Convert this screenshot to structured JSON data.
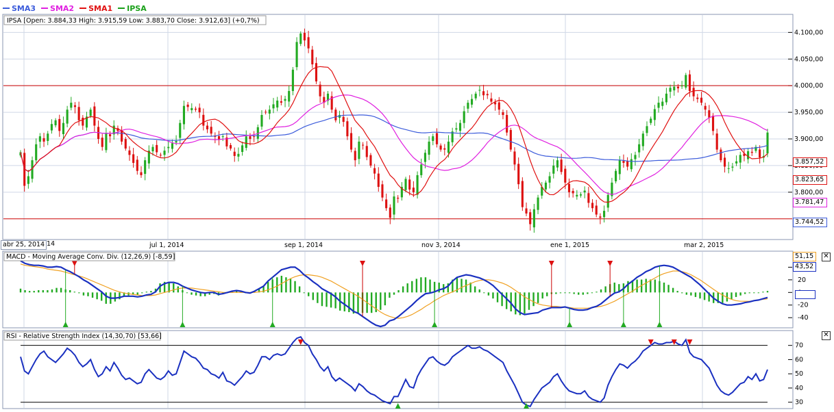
{
  "colors": {
    "sma3": "#3b5bdb",
    "sma2": "#e020e0",
    "sma1": "#e01010",
    "ipsa": "#1aa01a",
    "bull": "#22aa22",
    "bear": "#dd1111",
    "macd": "#1a30c0",
    "signal": "#f0a020",
    "rsi": "#1a30c0",
    "grid": "#cfd7e6",
    "hline": "#cc0000"
  },
  "legend": [
    {
      "label": "SMA3",
      "color": "#3b5bdb",
      "icon": "line-swatch"
    },
    {
      "label": "SMA2",
      "color": "#e020e0",
      "icon": "line-swatch"
    },
    {
      "label": "SMA1",
      "color": "#e01010",
      "icon": "line-swatch"
    },
    {
      "label": "IPSA",
      "color": "#1aa01a",
      "icon": "line-swatch"
    }
  ],
  "main": {
    "info": "IPSA [Open: 3.884,33  High: 3.915,59  Low: 3.883,70  Close: 3.912,63] (+0,7%)",
    "price_labels": [
      {
        "text": "3.857,52",
        "color": "#dd1111",
        "value": 3857.52
      },
      {
        "text": "3.823,65",
        "color": "#dd1111",
        "value": 3823.65
      },
      {
        "text": "3.781,47",
        "color": "#e020e0",
        "value": 3781.47
      },
      {
        "text": "3.744,52",
        "color": "#3b5bdb",
        "value": 3744.52
      }
    ]
  },
  "xaxis": {
    "first_date": "abr 25, 2014",
    "labels": [
      "jul 1, 2014",
      "sep 1, 2014",
      "nov 3, 2014",
      "ene 1, 2015",
      "mar 2, 2015"
    ],
    "first_date_suffix": "14"
  },
  "macd": {
    "title": "MACD - Moving Average Conv. Div. (12,26,9) [-8,59]",
    "badge_signal": "51,15",
    "badge_macd": "43,52",
    "close_icon": "close-icon"
  },
  "rsi": {
    "title": "RSI - Relative Strength Index (14,30,70) [53,66]",
    "close_icon": "close-icon"
  },
  "chart_data": [
    {
      "type": "candlestick",
      "title": "IPSA",
      "yticks": [
        3800,
        3850,
        3900,
        3950,
        4000,
        4050,
        4100
      ],
      "ytick_labels": [
        "3.800,00",
        "3.850,00",
        "3.900,00",
        "3.950,00",
        "4.000,00",
        "4.050,00",
        "4.100,00"
      ],
      "ylim": [
        3715,
        4130
      ],
      "hlines": [
        4000,
        3750
      ],
      "series": [
        {
          "name": "SMA3"
        },
        {
          "name": "SMA2"
        },
        {
          "name": "SMA1"
        },
        {
          "name": "IPSA"
        }
      ],
      "close": [
        3875,
        3812,
        3830,
        3860,
        3890,
        3905,
        3895,
        3910,
        3928,
        3935,
        3915,
        3930,
        3955,
        3968,
        3960,
        3935,
        3925,
        3942,
        3955,
        3925,
        3900,
        3885,
        3910,
        3905,
        3925,
        3915,
        3895,
        3882,
        3870,
        3855,
        3840,
        3832,
        3860,
        3878,
        3885,
        3875,
        3870,
        3878,
        3885,
        3892,
        3896,
        3930,
        3962,
        3960,
        3958,
        3955,
        3950,
        3925,
        3918,
        3910,
        3904,
        3898,
        3905,
        3886,
        3882,
        3868,
        3872,
        3888,
        3905,
        3900,
        3904,
        3922,
        3945,
        3950,
        3955,
        3965,
        3972,
        3968,
        3975,
        3990,
        4030,
        4082,
        4098,
        4085,
        4070,
        4040,
        4008,
        3980,
        3968,
        3985,
        3955,
        3935,
        3945,
        3932,
        3905,
        3880,
        3860,
        3895,
        3888,
        3866,
        3850,
        3835,
        3810,
        3790,
        3770,
        3752,
        3792,
        3788,
        3810,
        3825,
        3805,
        3800,
        3832,
        3852,
        3874,
        3895,
        3905,
        3890,
        3880,
        3880,
        3895,
        3914,
        3920,
        3930,
        3952,
        3968,
        3975,
        3985,
        3992,
        3982,
        3982,
        3970,
        3965,
        3955,
        3945,
        3912,
        3880,
        3852,
        3815,
        3772,
        3760,
        3740,
        3768,
        3790,
        3810,
        3818,
        3830,
        3850,
        3860,
        3838,
        3818,
        3800,
        3798,
        3795,
        3796,
        3803,
        3780,
        3770,
        3758,
        3752,
        3765,
        3795,
        3818,
        3840,
        3860,
        3855,
        3848,
        3862,
        3870,
        3890,
        3910,
        3924,
        3938,
        3956,
        3968,
        3970,
        3985,
        3996,
        3998,
        3995,
        4000,
        4020,
        3990,
        3980,
        3975,
        3968,
        3955,
        3940,
        3915,
        3880,
        3860,
        3848,
        3845,
        3848,
        3858,
        3870,
        3868,
        3877,
        3874,
        3885,
        3865,
        3868,
        3912
      ]
    },
    {
      "type": "line",
      "title": "MACD",
      "yticks": [
        -40,
        -20,
        0,
        20,
        40
      ],
      "ylim": [
        -55,
        60
      ],
      "macd": [
        50,
        46,
        44,
        43,
        43,
        42,
        40,
        40,
        41,
        40,
        36,
        33,
        29,
        25,
        20,
        16,
        11,
        6,
        1,
        -6,
        -9,
        -9,
        -8,
        -6,
        -6,
        -6,
        -7,
        -6,
        -4,
        -3,
        1,
        10,
        14,
        16,
        16,
        14,
        10,
        7,
        4,
        2,
        0,
        -1,
        0,
        0,
        -3,
        -2,
        0,
        2,
        3,
        2,
        0,
        -1,
        2,
        6,
        10,
        18,
        24,
        30,
        36,
        38,
        40,
        40,
        35,
        28,
        23,
        17,
        12,
        6,
        2,
        -2,
        -7,
        -14,
        -19,
        -24,
        -30,
        -33,
        -38,
        -43,
        -48,
        -52,
        -54,
        -52,
        -45,
        -43,
        -38,
        -32,
        -26,
        -20,
        -13,
        -7,
        -2,
        -1,
        1,
        4,
        6,
        10,
        18,
        24,
        26,
        28,
        27,
        25,
        23,
        20,
        16,
        11,
        4,
        -3,
        -10,
        -17,
        -26,
        -32,
        -35,
        -34,
        -33,
        -32,
        -28,
        -26,
        -24,
        -24,
        -24,
        -23,
        -25,
        -27,
        -28,
        -28,
        -27,
        -24,
        -22,
        -18,
        -12,
        -6,
        -1,
        1,
        6,
        13,
        18,
        24,
        28,
        33,
        36,
        40,
        42,
        43,
        42,
        40,
        36,
        32,
        28,
        24,
        18,
        12,
        5,
        -2,
        -9,
        -14,
        -18,
        -20,
        -20,
        -19,
        -18,
        -16,
        -15,
        -13,
        -12,
        -10,
        -8
      ],
      "signal": [
        45,
        43,
        42,
        41,
        40,
        39,
        37,
        36,
        35,
        34,
        32,
        30,
        28,
        26,
        24,
        21,
        18,
        15,
        12,
        9,
        6,
        3,
        1,
        -1,
        -2,
        -3,
        -4,
        -5,
        -5,
        -5,
        -4,
        -2,
        0,
        2,
        4,
        6,
        7,
        7,
        7,
        6,
        5,
        4,
        3,
        2,
        1,
        0,
        0,
        0,
        0,
        0,
        0,
        0,
        0,
        1,
        2,
        4,
        7,
        10,
        14,
        18,
        22,
        25,
        27,
        28,
        28,
        27,
        26,
        24,
        21,
        18,
        14,
        10,
        6,
        2,
        -2,
        -6,
        -11,
        -16,
        -21,
        -26,
        -31,
        -35,
        -38,
        -40,
        -41,
        -40,
        -38,
        -35,
        -31,
        -27,
        -22,
        -18,
        -13,
        -9,
        -5,
        -2,
        1,
        4,
        8,
        11,
        14,
        17,
        19,
        20,
        20,
        19,
        17,
        15,
        12,
        8,
        3,
        -2,
        -7,
        -11,
        -15,
        -18,
        -20,
        -21,
        -22,
        -22,
        -23,
        -23,
        -24,
        -25,
        -25,
        -25,
        -25,
        -24,
        -23,
        -22,
        -20,
        -17,
        -14,
        -10,
        -6,
        -2,
        2,
        7,
        11,
        15,
        19,
        23,
        27,
        30,
        32,
        34,
        34,
        33,
        31,
        28,
        24,
        20,
        15,
        10,
        5,
        0,
        -4,
        -8,
        -11,
        -13,
        -14,
        -14,
        -14,
        -13,
        -12,
        -11,
        -10
      ]
    },
    {
      "type": "line",
      "title": "RSI",
      "yticks": [
        30,
        40,
        50,
        60,
        70
      ],
      "ylim": [
        26,
        79
      ],
      "hlines": [
        70,
        30
      ],
      "values": [
        62,
        52,
        50,
        55,
        60,
        64,
        66,
        62,
        60,
        58,
        61,
        64,
        68,
        66,
        63,
        58,
        55,
        57,
        60,
        53,
        48,
        50,
        55,
        52,
        58,
        54,
        49,
        46,
        47,
        45,
        43,
        44,
        50,
        53,
        50,
        47,
        46,
        48,
        52,
        49,
        50,
        58,
        66,
        64,
        62,
        61,
        58,
        54,
        53,
        50,
        49,
        47,
        51,
        45,
        44,
        42,
        45,
        48,
        52,
        50,
        51,
        56,
        62,
        62,
        60,
        63,
        64,
        63,
        64,
        68,
        72,
        75,
        76,
        72,
        70,
        64,
        60,
        55,
        52,
        55,
        48,
        45,
        47,
        45,
        43,
        41,
        38,
        43,
        41,
        38,
        36,
        35,
        33,
        31,
        30,
        29,
        34,
        34,
        40,
        46,
        41,
        40,
        48,
        53,
        57,
        61,
        62,
        59,
        57,
        56,
        58,
        62,
        64,
        66,
        68,
        70,
        68,
        68,
        69,
        67,
        66,
        64,
        62,
        60,
        58,
        52,
        47,
        42,
        36,
        30,
        28,
        27,
        32,
        36,
        40,
        42,
        44,
        48,
        50,
        45,
        41,
        38,
        37,
        36,
        36,
        38,
        34,
        32,
        31,
        30,
        33,
        42,
        48,
        53,
        57,
        56,
        54,
        57,
        59,
        62,
        66,
        68,
        70,
        72,
        71,
        71,
        72,
        72,
        73,
        71,
        70,
        74,
        65,
        62,
        61,
        60,
        57,
        54,
        48,
        42,
        38,
        36,
        35,
        37,
        40,
        43,
        44,
        48,
        46,
        50,
        45,
        46,
        53
      ]
    }
  ]
}
